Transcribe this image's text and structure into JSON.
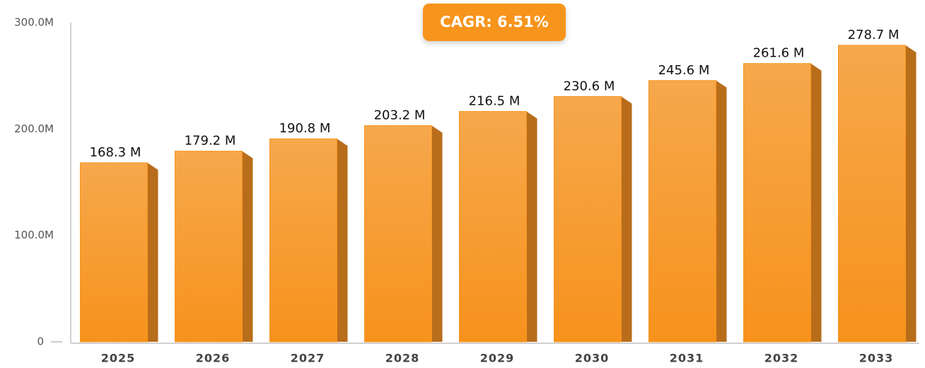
{
  "chart_data": {
    "type": "bar",
    "annotation": "CAGR: 6.51%",
    "categories": [
      "2025",
      "2026",
      "2027",
      "2028",
      "2029",
      "2030",
      "2031",
      "2032",
      "2033"
    ],
    "values": [
      168.3,
      179.2,
      190.8,
      203.2,
      216.5,
      230.6,
      245.6,
      261.6,
      278.7
    ],
    "value_labels": [
      "168.3 M",
      "179.2 M",
      "190.8 M",
      "203.2 M",
      "216.5 M",
      "230.6 M",
      "245.6 M",
      "261.6 M",
      "278.7 M"
    ],
    "color": "#f7941d",
    "ylim": [
      0,
      300
    ],
    "yticks": [
      0,
      {
        "value": 100,
        "label": "100.0M"
      },
      {
        "value": 200,
        "label": "200.0M"
      },
      {
        "value": 300,
        "label": "300.0M"
      }
    ],
    "grid": false
  }
}
